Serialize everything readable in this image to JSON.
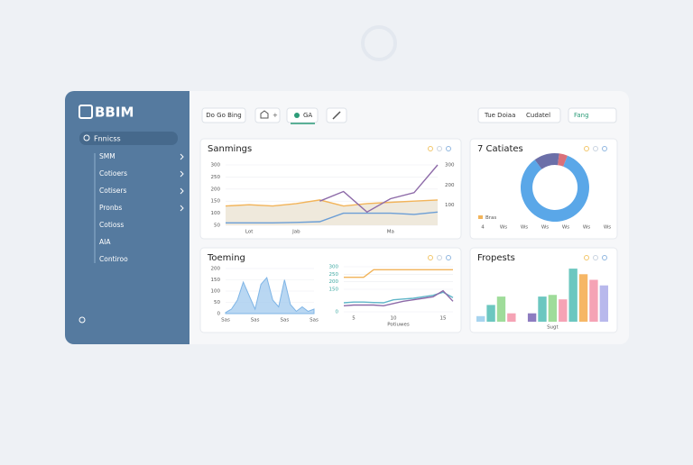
{
  "sidebar": {
    "logo": "BBIM",
    "search": "Fnnicss",
    "nav": [
      "SMM",
      "Cotioers",
      "Cotisers",
      "Pronbs",
      "Cotioss",
      "AIA",
      "Contiroo"
    ]
  },
  "toolbar": {
    "buttons": [
      "Do Go Bing",
      "+",
      "GA"
    ],
    "right": [
      "Tue Doiaa",
      "Cudatel",
      "Fang"
    ]
  },
  "cards": [
    {
      "title": "Sanmings",
      "charts": [
        {
          "type": "line",
          "categories": [
            null,
            "Lot",
            null,
            "Jab",
            null,
            null,
            null,
            "Ma",
            null,
            null
          ],
          "ylim": [
            50,
            300
          ],
          "yticks": [
            50,
            100,
            150,
            200,
            250,
            300
          ],
          "y2lim": [
            0,
            300
          ],
          "y2ticks": [
            100,
            200,
            300
          ],
          "fill": "#efe9dc",
          "series": [
            {
              "color": "#f2b45a",
              "values": [
                130,
                135,
                130,
                140,
                155,
                130,
                140,
                145,
                150,
                155
              ]
            },
            {
              "color": "#6b9ed6",
              "values": [
                60,
                60,
                60,
                62,
                65,
                100,
                100,
                100,
                95,
                105
              ]
            },
            {
              "color": "#8d6aa8",
              "values": [
                null,
                null,
                null,
                null,
                150,
                190,
                105,
                160,
                185,
                300
              ]
            }
          ]
        }
      ]
    },
    {
      "title": "7 Catiates",
      "charts": [
        {
          "type": "pie",
          "values": [
            12,
            4,
            84
          ],
          "colors": [
            "#6b6fa8",
            "#d9707a",
            "#5aa7e8"
          ],
          "legend": "Bras",
          "legend_color": "#f2b45a",
          "axis_labels": [
            "4",
            "Ws",
            "Ws",
            "Ws",
            "Ws",
            "Ws",
            "Ws"
          ]
        }
      ]
    },
    {
      "title": "Toeming",
      "charts": [
        {
          "type": "area",
          "color": "#a8cdef",
          "categories": [
            "Sas",
            null,
            null,
            null,
            null,
            "Sas",
            null,
            null,
            null,
            null,
            "Sas",
            null,
            null,
            null,
            null,
            "Sas"
          ],
          "ylim": [
            0,
            200
          ],
          "yticks": [
            0,
            50,
            100,
            150,
            200
          ],
          "values": [
            5,
            20,
            60,
            140,
            80,
            20,
            130,
            160,
            60,
            30,
            150,
            40,
            10,
            30,
            10,
            20
          ]
        },
        {
          "type": "line",
          "xlabel": "Potiuwes",
          "tick_color": "#3aa7a0",
          "categories": [
            null,
            "5",
            null,
            null,
            null,
            "10",
            null,
            null,
            null,
            null,
            "15",
            null
          ],
          "ylim": [
            0,
            300
          ],
          "yticks": [
            0,
            150,
            200,
            250,
            300
          ],
          "series": [
            {
              "color": "#f2b45a",
              "values": [
                230,
                230,
                230,
                280,
                280,
                280,
                280,
                280,
                280,
                280,
                280,
                280
              ]
            },
            {
              "color": "#5fb5c8",
              "values": [
                60,
                65,
                65,
                62,
                60,
                80,
                85,
                90,
                100,
                110,
                130,
                95
              ]
            },
            {
              "color": "#8d6aa8",
              "values": [
                40,
                45,
                45,
                45,
                40,
                55,
                70,
                80,
                90,
                100,
                140,
                70
              ]
            }
          ]
        }
      ]
    },
    {
      "title": "Fropests",
      "charts": [
        {
          "type": "bar",
          "ylim": [
            0,
            100
          ],
          "categories": [
            null,
            null,
            null,
            null,
            null,
            null,
            null,
            "Sugt",
            null,
            null,
            null,
            null,
            null
          ],
          "values": [
            10,
            30,
            45,
            15,
            null,
            15,
            45,
            48,
            40,
            95,
            85,
            75,
            65
          ],
          "colors": [
            "#a8d4ef",
            "#6cc7c0",
            "#9fdc9a",
            "#f5a3b5",
            null,
            "#8d7cc0",
            "#6cc7c0",
            "#9fdc9a",
            "#f5a3b5",
            "#6cc7c0",
            "#f6b766",
            "#f5a3b5",
            "#b8b8ec"
          ]
        }
      ]
    }
  ]
}
